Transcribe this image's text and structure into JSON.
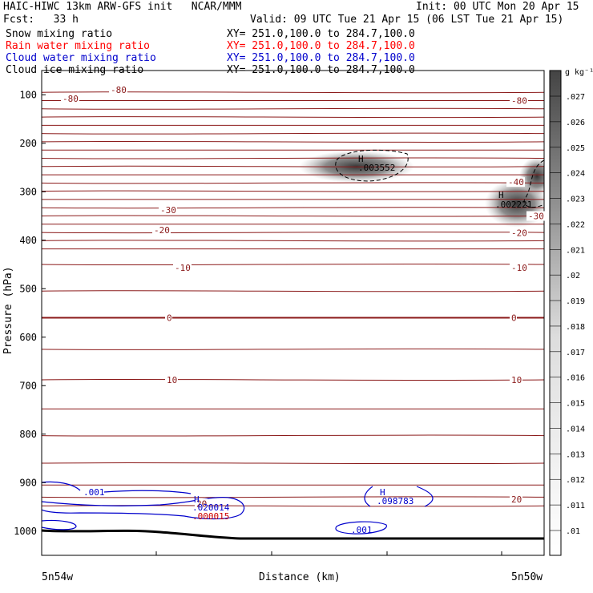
{
  "header": {
    "title_left": "HAIC-HIWC 13km ARW-GFS init   NCAR/MMM",
    "init": "Init: 00 UTC Mon 20 Apr 15",
    "fcst": "Fcst:   33 h",
    "valid": "Valid: 09 UTC Tue 21 Apr 15 (06 LST Tue 21 Apr 15)",
    "fields": [
      {
        "label": "Snow mixing ratio",
        "xy": "XY= 251.0,100.0 to 284.7,100.0",
        "color": "#000000"
      },
      {
        "label": "Rain water mixing ratio",
        "xy": "XY= 251.0,100.0 to 284.7,100.0",
        "color": "#ff0000"
      },
      {
        "label": "Cloud water mixing ratio",
        "xy": "XY= 251.0,100.0 to 284.7,100.0",
        "color": "#0000cc"
      },
      {
        "label": "Cloud ice mixing ratio",
        "xy": "XY= 251.0,100.0 to 284.7,100.0",
        "color": "#000000"
      }
    ]
  },
  "chart_data": {
    "type": "contour",
    "ylabel": "Pressure (hPa)",
    "xlabel": "Distance (km)",
    "x_ticks": [
      "5n54w",
      "5n50w"
    ],
    "y_ticks": [
      100,
      200,
      300,
      400,
      500,
      600,
      700,
      800,
      900,
      1000
    ],
    "ylim": [
      1050,
      50
    ],
    "colorbar": {
      "unit": "g kg⁻¹",
      "levels": [
        ".01",
        ".011",
        ".012",
        ".013",
        ".014",
        ".015",
        ".016",
        ".017",
        ".018",
        ".019",
        ".02",
        ".021",
        ".022",
        ".023",
        ".024",
        ".025",
        ".026",
        ".027"
      ]
    },
    "temperature_labels": [
      {
        "text": "-80",
        "side": "left",
        "p": 108
      },
      {
        "text": "-80",
        "side": "top",
        "p": 90
      },
      {
        "text": "-80",
        "side": "right",
        "p": 112
      },
      {
        "text": "-40",
        "side": "right",
        "p": 280
      },
      {
        "text": "-30",
        "side": "left",
        "p": 338
      },
      {
        "text": "-30",
        "side": "right",
        "p": 350
      },
      {
        "text": "-20",
        "side": "left",
        "p": 379
      },
      {
        "text": "-20",
        "side": "right",
        "p": 385
      },
      {
        "text": "-10",
        "side": "left",
        "p": 457
      },
      {
        "text": "-10",
        "side": "right",
        "p": 457
      },
      {
        "text": "0",
        "side": "left",
        "p": 560
      },
      {
        "text": "0",
        "side": "right",
        "p": 560
      },
      {
        "text": "10",
        "side": "left",
        "p": 688
      },
      {
        "text": "10",
        "side": "right",
        "p": 688
      },
      {
        "text": "20",
        "side": "right",
        "p": 934
      },
      {
        "text": "20",
        "side": "mid",
        "p": 943
      }
    ],
    "maxima": [
      {
        "symbol": "H",
        "value": ".003552",
        "field": "snow"
      },
      {
        "symbol": "H",
        "value": ".002221",
        "field": "snow"
      },
      {
        "symbol": "H",
        "value": ".020014",
        "field": "cloud water"
      },
      {
        "symbol": "",
        "value": ".000015",
        "field": "rain water"
      },
      {
        "symbol": "H",
        "value": ".098783",
        "field": "cloud water"
      }
    ],
    "cloud_water_labels": [
      ".001",
      ".001"
    ]
  }
}
